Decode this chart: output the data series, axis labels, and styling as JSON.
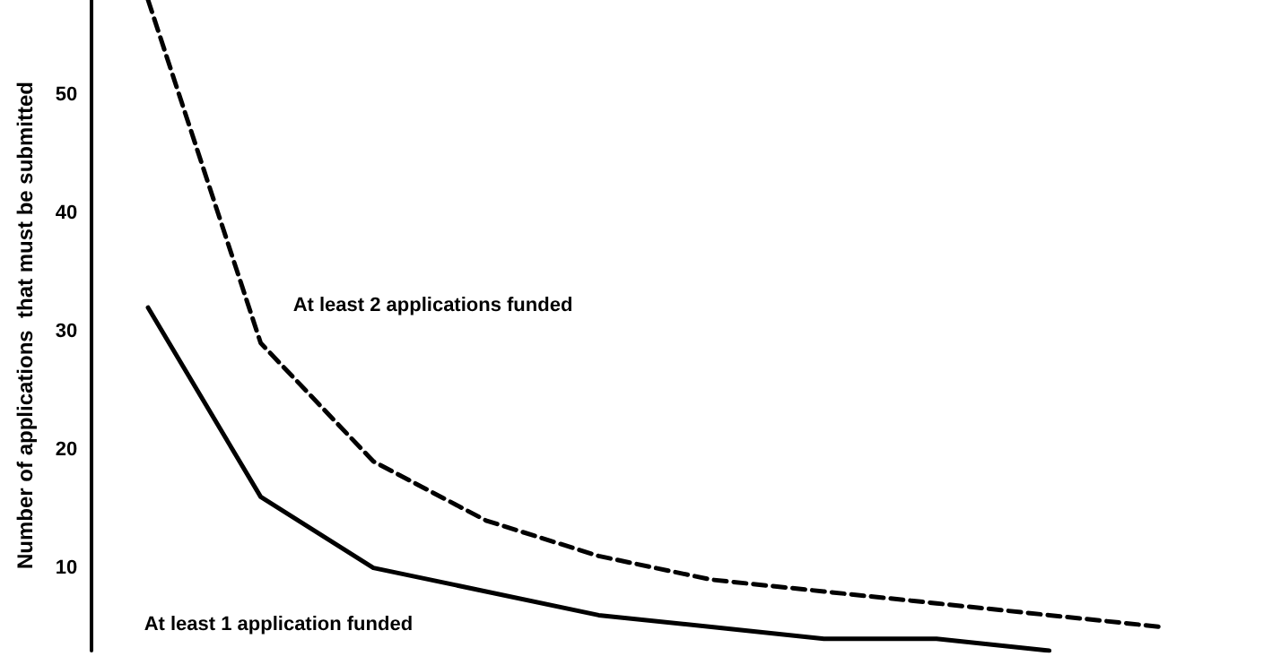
{
  "chart_data": {
    "type": "line",
    "ylabel": "Number of applications  that must be submitted",
    "categories": [
      null,
      null,
      null,
      null,
      null,
      null,
      null,
      null,
      null,
      null
    ],
    "series": [
      {
        "name": "At least 2 applications funded",
        "color": "#000000",
        "line_style": "dashed",
        "values": [
          58,
          29,
          19,
          14,
          11,
          9,
          8,
          7,
          6,
          5
        ]
      },
      {
        "name": "At least 1 application funded",
        "color": "#000000",
        "line_style": "solid",
        "values": [
          32,
          16,
          10,
          8,
          6,
          5,
          4,
          4,
          3,
          null
        ]
      }
    ],
    "ylim": [
      3,
      58
    ],
    "yticks": [
      10,
      20,
      30,
      40,
      50
    ],
    "grid": false,
    "legend": false,
    "marker": "none"
  }
}
